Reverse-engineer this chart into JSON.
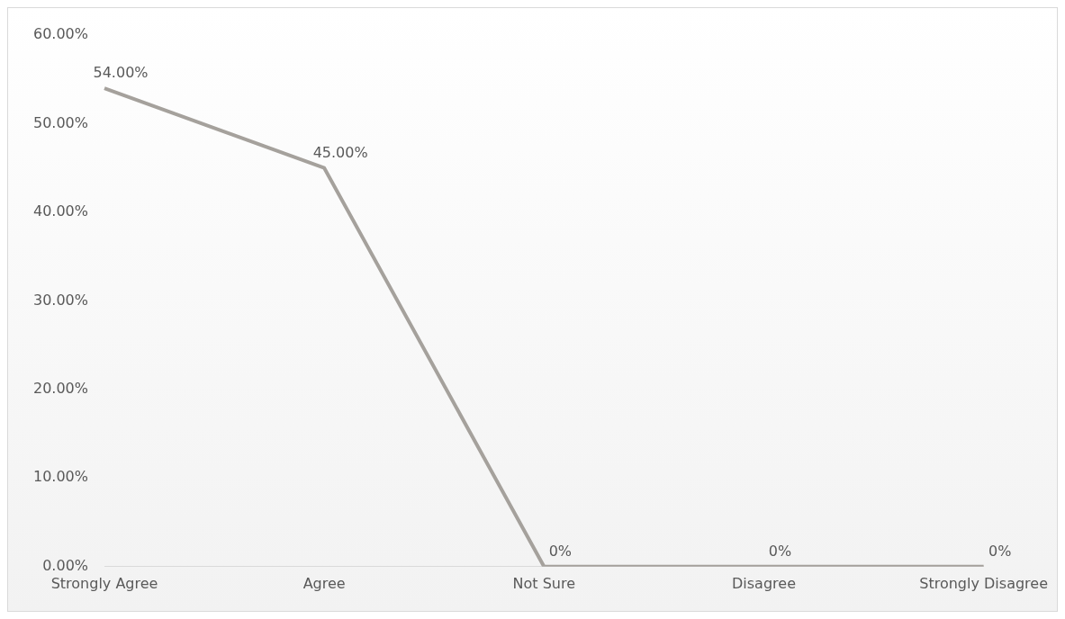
{
  "chart_data": {
    "type": "line",
    "categories": [
      "Strongly Agree",
      "Agree",
      "Not Sure",
      "Disagree",
      "Strongly Disagree"
    ],
    "series": [
      {
        "color": "#a5a19c",
        "values": [
          54,
          45,
          0,
          0,
          0
        ],
        "value_labels": [
          "54.00%",
          "45.00%",
          "0%",
          "0%",
          "0%"
        ]
      }
    ],
    "ylim": [
      0,
      60
    ],
    "yticks": [
      {
        "value": 0,
        "label": "0.00%"
      },
      {
        "value": 10,
        "label": "10.00%"
      },
      {
        "value": 20,
        "label": "20.00%"
      },
      {
        "value": 30,
        "label": "30.00%"
      },
      {
        "value": 40,
        "label": "40.00%"
      },
      {
        "value": 50,
        "label": "50.00%"
      },
      {
        "value": 60,
        "label": "60.00%"
      }
    ],
    "grid": false,
    "legend": false,
    "marker": "none",
    "line_style": "solid"
  }
}
